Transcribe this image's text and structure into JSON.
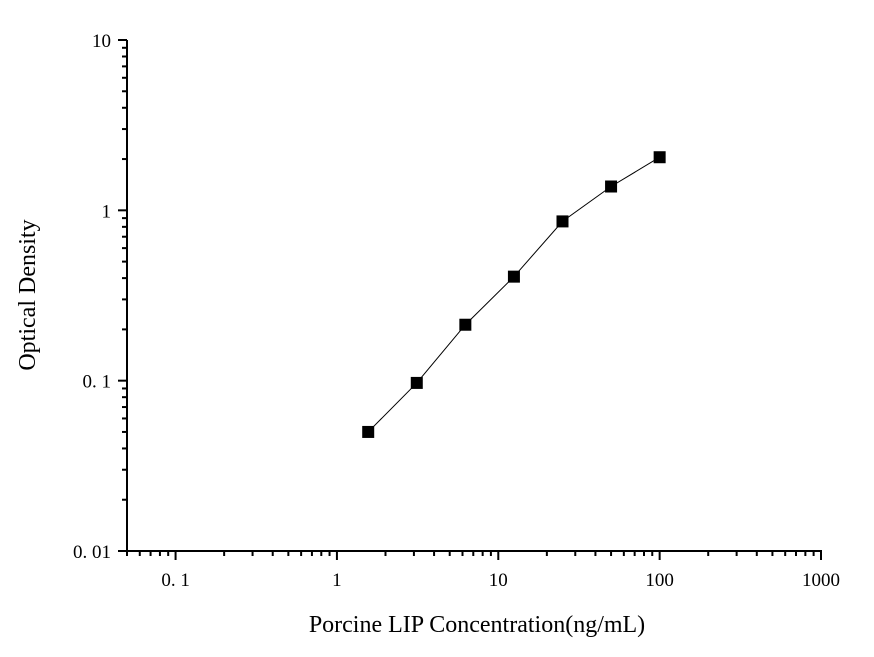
{
  "chart_data": {
    "type": "scatter",
    "title": "",
    "xlabel": "Porcine LIP Concentration(ng/mL)",
    "ylabel": "Optical Density",
    "x_scale": "log",
    "y_scale": "log",
    "xlim": [
      0.05,
      1000
    ],
    "ylim": [
      0.01,
      10
    ],
    "x_ticks": [
      0.1,
      1,
      10,
      100,
      1000
    ],
    "x_tick_labels": [
      "0. 1",
      "1",
      "10",
      "100",
      "1000"
    ],
    "y_ticks": [
      0.01,
      0.1,
      1,
      10
    ],
    "y_tick_labels": [
      "0. 01",
      "0. 1",
      "1",
      "10"
    ],
    "grid": false,
    "series": [
      {
        "x": [
          1.5625,
          3.125,
          6.25,
          12.5,
          25,
          50,
          100
        ],
        "y": [
          0.05,
          0.097,
          0.213,
          0.408,
          0.861,
          1.38,
          2.05
        ],
        "marker": "square",
        "line": true,
        "color": "#000000"
      }
    ]
  }
}
